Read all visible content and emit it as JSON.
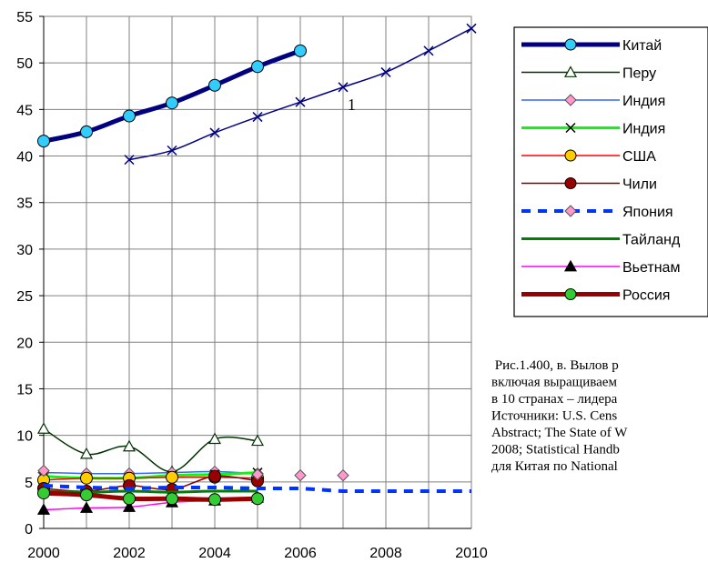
{
  "chart_data": {
    "type": "line",
    "title": "",
    "xlabel": "",
    "ylabel": "",
    "xlim": [
      2000,
      2010
    ],
    "ylim": [
      0,
      55
    ],
    "xticks": [
      2000,
      2002,
      2004,
      2006,
      2008,
      2010
    ],
    "yticks": [
      0,
      5,
      10,
      15,
      20,
      25,
      30,
      35,
      40,
      45,
      50,
      55
    ],
    "grid": true,
    "legend_position": "right",
    "series": [
      {
        "name": "Китай",
        "color": "#000080",
        "marker": "circle",
        "marker_fill": "#33ccff",
        "line": "solid",
        "width": 5,
        "smooth": true,
        "x": [
          2000,
          2001,
          2002,
          2003,
          2004,
          2005,
          2006
        ],
        "y": [
          41.6,
          42.6,
          44.3,
          45.7,
          47.6,
          49.6,
          51.3
        ]
      },
      {
        "name": "Перу",
        "color": "#003300",
        "marker": "triangle-open",
        "marker_fill": "#ffffff",
        "line": "solid",
        "width": 1.5,
        "smooth": true,
        "x": [
          2000,
          2001,
          2002,
          2003,
          2004,
          2005
        ],
        "y": [
          10.7,
          8.0,
          8.8,
          6.1,
          9.6,
          9.4
        ]
      },
      {
        "name": "Индия",
        "color": "#3366ff",
        "marker": "diamond",
        "marker_fill": "#ff99cc",
        "line": "solid",
        "width": 1.5,
        "smooth": true,
        "x": [
          2000,
          2001,
          2002,
          2003,
          2004,
          2005
        ],
        "y": [
          6.0,
          5.9,
          5.9,
          6.0,
          6.1,
          5.9
        ]
      },
      {
        "name": "Индия",
        "color": "#00ff00",
        "marker": "x",
        "marker_fill": "#000000",
        "line": "solid",
        "width": 3,
        "smooth": true,
        "x": [
          2000,
          2001,
          2002,
          2003,
          2004,
          2005
        ],
        "y": [
          5.6,
          5.4,
          5.4,
          5.7,
          5.8,
          6.0
        ]
      },
      {
        "name": "США",
        "color": "#ff0000",
        "marker": "circle",
        "marker_fill": "#ffcc00",
        "line": "solid",
        "width": 1.5,
        "smooth": true,
        "x": [
          2000,
          2001,
          2002,
          2003,
          2004,
          2005
        ],
        "y": [
          5.2,
          5.4,
          5.4,
          5.5,
          5.5,
          5.4
        ]
      },
      {
        "name": "Чили",
        "color": "#800000",
        "marker": "circle",
        "marker_fill": "#990000",
        "line": "solid",
        "width": 1.5,
        "smooth": true,
        "x": [
          2000,
          2001,
          2002,
          2003,
          2004,
          2005
        ],
        "y": [
          4.3,
          4.0,
          4.6,
          4.2,
          5.6,
          5.1
        ]
      },
      {
        "name": "Япония",
        "color": "#0033ff",
        "marker": "diamond",
        "marker_fill": "#ff99cc",
        "line": "dashed",
        "width": 4,
        "smooth": false,
        "x": [
          2000,
          2001,
          2002,
          2003,
          2004,
          2005,
          2006,
          2007,
          2008,
          2009,
          2010
        ],
        "y": [
          4.6,
          4.4,
          4.3,
          4.4,
          4.4,
          4.3,
          4.3,
          4.0,
          4.0,
          4.0,
          4.0
        ],
        "marker_x": [
          2000,
          2005,
          2006,
          2007
        ],
        "marker_y": [
          6.2,
          5.8,
          5.7,
          5.7
        ]
      },
      {
        "name": "Тайланд",
        "color": "#008000",
        "marker": "none",
        "marker_fill": "",
        "line": "solid",
        "width": 3,
        "smooth": true,
        "x": [
          2000,
          2001,
          2002,
          2003,
          2004,
          2005
        ],
        "y": [
          4.0,
          3.9,
          4.0,
          3.9,
          4.0,
          4.0
        ]
      },
      {
        "name": "Вьетнам",
        "color": "#ff00ff",
        "marker": "triangle",
        "marker_fill": "#000000",
        "line": "solid",
        "width": 1.5,
        "smooth": true,
        "x": [
          2000,
          2001,
          2002,
          2003,
          2004,
          2005
        ],
        "y": [
          2.0,
          2.2,
          2.3,
          2.8,
          3.0,
          3.3
        ]
      },
      {
        "name": "Россия",
        "color": "#990000",
        "marker": "circle",
        "marker_fill": "#33cc33",
        "line": "solid",
        "width": 5,
        "smooth": true,
        "x": [
          2000,
          2001,
          2002,
          2003,
          2004,
          2005
        ],
        "y": [
          3.8,
          3.6,
          3.2,
          3.2,
          3.1,
          3.2
        ]
      },
      {
        "name": "",
        "color": "#000080",
        "marker": "x",
        "marker_fill": "#000080",
        "line": "solid",
        "width": 1.5,
        "smooth": true,
        "x": [
          2002,
          2003,
          2004,
          2005,
          2006,
          2007,
          2008,
          2009,
          2010
        ],
        "y": [
          39.6,
          40.6,
          42.5,
          44.2,
          45.8,
          47.4,
          49.0,
          51.3,
          53.7
        ]
      }
    ],
    "annotation": {
      "text": "1",
      "x": 2007.2,
      "y": 45.5
    },
    "caption_lines": [
      " Рис.1.400, в. Вылов р",
      "включая выращиваем",
      "в 10 странах – лидера",
      "Источники: U.S. Cens",
      "Abstract; The State of W",
      "2008; Statistical Handb",
      "для Китая по National"
    ]
  }
}
